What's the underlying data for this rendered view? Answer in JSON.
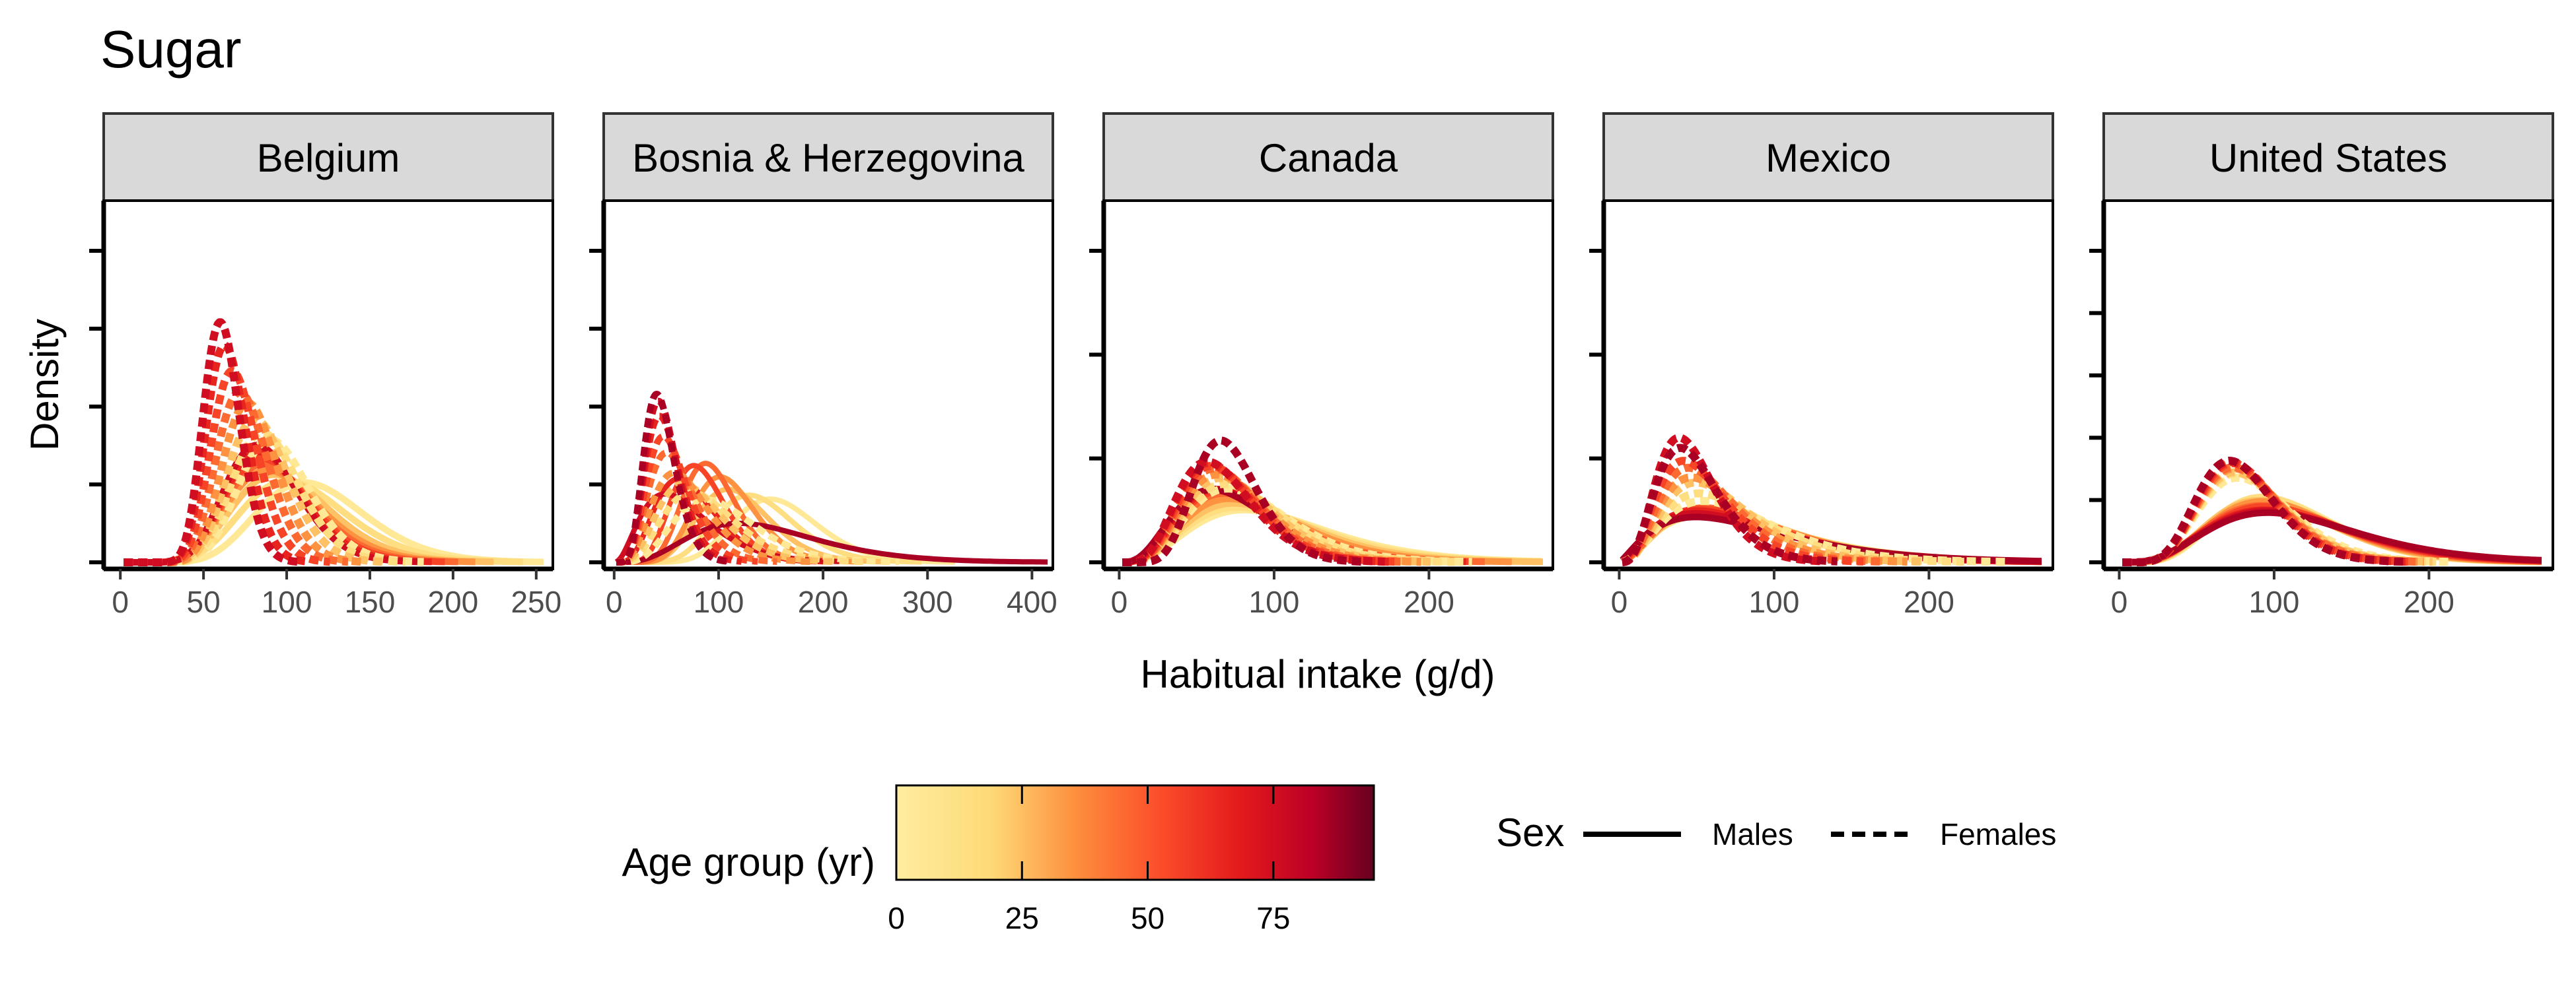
{
  "chart_data": {
    "type": "line",
    "title": "Sugar",
    "xlabel": "Habitual intake (g/d)",
    "ylabel": "Density",
    "legend_placement": "bottom",
    "color_legend": {
      "title": "Age group (yr)",
      "range": [
        0,
        95
      ],
      "ticks": [
        0,
        25,
        50,
        75
      ],
      "colors": [
        "#FFEDA0",
        "#FEB24C",
        "#FC4E2A",
        "#E31A1C",
        "#BD0026",
        "#800026"
      ]
    },
    "linetype_legend": {
      "title": "Sex",
      "entries": [
        {
          "label": "Males",
          "linetype": "solid"
        },
        {
          "label": "Females",
          "linetype": "dashed"
        }
      ]
    },
    "panels": [
      {
        "name": "Belgium",
        "xlim": [
          -10,
          260
        ],
        "xticks": [
          0,
          50,
          100,
          150,
          200,
          250
        ],
        "ymax": 1.08,
        "ytick_count": 4,
        "ages": [
          5,
          15,
          25,
          35,
          45,
          55,
          65,
          75
        ],
        "male": [
          [
            120,
            0.28
          ],
          [
            110,
            0.3
          ],
          [
            102,
            0.3
          ],
          [
            97,
            0.3
          ],
          [
            94,
            0.29
          ],
          [
            92,
            0.28
          ],
          [
            90,
            0.27
          ],
          [
            88,
            0.26
          ]
        ],
        "female": [
          [
            95,
            0.23
          ],
          [
            90,
            0.23
          ],
          [
            85,
            0.22
          ],
          [
            80,
            0.21
          ],
          [
            75,
            0.21
          ],
          [
            70,
            0.2
          ],
          [
            65,
            0.19
          ],
          [
            62,
            0.18
          ]
        ],
        "male_width": 10,
        "female_width": 12
      },
      {
        "name": "Bosnia & Herzegovina",
        "xlim": [
          -10,
          420
        ],
        "xticks": [
          0,
          100,
          200,
          300,
          400
        ],
        "ymax": 1.1,
        "ytick_count": 4,
        "ages": [
          5,
          15,
          25,
          35,
          45,
          55,
          65,
          75,
          85
        ],
        "male": [
          [
            160,
            0.26
          ],
          [
            140,
            0.28
          ],
          [
            120,
            0.3
          ],
          [
            110,
            0.28
          ],
          [
            95,
            0.28
          ],
          [
            85,
            0.32
          ],
          [
            75,
            0.42
          ],
          [
            70,
            0.55
          ],
          [
            150,
            0.45
          ]
        ],
        "female": [
          [
            105,
            0.4
          ],
          [
            90,
            0.42
          ],
          [
            80,
            0.42
          ],
          [
            70,
            0.42
          ],
          [
            60,
            0.4
          ],
          [
            55,
            0.38
          ],
          [
            50,
            0.36
          ],
          [
            48,
            0.34
          ],
          [
            46,
            0.34
          ]
        ],
        "male_width": 8,
        "female_width": 10
      },
      {
        "name": "Canada",
        "xlim": [
          -10,
          280
        ],
        "xticks": [
          0,
          100,
          200
        ],
        "ymax": 1.1,
        "ytick_count": 3,
        "ages": [
          5,
          15,
          25,
          35,
          45,
          55,
          65,
          75,
          85
        ],
        "male": [
          [
            105,
            0.48
          ],
          [
            100,
            0.48
          ],
          [
            95,
            0.47
          ],
          [
            90,
            0.46
          ],
          [
            85,
            0.45
          ],
          [
            82,
            0.45
          ],
          [
            80,
            0.45
          ],
          [
            78,
            0.46
          ],
          [
            77,
            0.47
          ]
        ],
        "female": [
          [
            85,
            0.42
          ],
          [
            82,
            0.41
          ],
          [
            78,
            0.4
          ],
          [
            75,
            0.4
          ],
          [
            72,
            0.39
          ],
          [
            70,
            0.39
          ],
          [
            68,
            0.39
          ],
          [
            67,
            0.39
          ],
          [
            72,
            0.3
          ]
        ],
        "male_width": 10,
        "female_width": 12
      },
      {
        "name": "Mexico",
        "xlim": [
          -10,
          280
        ],
        "xticks": [
          0,
          100,
          200
        ],
        "ymax": 1.1,
        "ytick_count": 3,
        "ages": [
          5,
          15,
          25,
          35,
          45,
          55,
          65,
          75,
          85
        ],
        "male": [
          [
            90,
            0.62
          ],
          [
            88,
            0.6
          ],
          [
            86,
            0.58
          ],
          [
            84,
            0.58
          ],
          [
            83,
            0.58
          ],
          [
            82,
            0.6
          ],
          [
            82,
            0.62
          ],
          [
            84,
            0.64
          ],
          [
            88,
            0.66
          ]
        ],
        "female": [
          [
            78,
            0.55
          ],
          [
            72,
            0.53
          ],
          [
            66,
            0.5
          ],
          [
            62,
            0.5
          ],
          [
            58,
            0.48
          ],
          [
            54,
            0.48
          ],
          [
            50,
            0.46
          ],
          [
            48,
            0.44
          ],
          [
            50,
            0.46
          ]
        ],
        "male_width": 10,
        "female_width": 12
      },
      {
        "name": "United States",
        "xlim": [
          -10,
          280
        ],
        "xticks": [
          0,
          100,
          200
        ],
        "ymax": 1.08,
        "ytick_count": 5,
        "ages": [
          5,
          15,
          25,
          35,
          45,
          55,
          65,
          75,
          85
        ],
        "male": [
          [
            110,
            0.38
          ],
          [
            108,
            0.38
          ],
          [
            108,
            0.4
          ],
          [
            110,
            0.4
          ],
          [
            112,
            0.42
          ],
          [
            114,
            0.42
          ],
          [
            116,
            0.44
          ],
          [
            118,
            0.44
          ],
          [
            120,
            0.45
          ]
        ],
        "female": [
          [
            88,
            0.36
          ],
          [
            86,
            0.35
          ],
          [
            85,
            0.35
          ],
          [
            84,
            0.34
          ],
          [
            83,
            0.34
          ],
          [
            82,
            0.33
          ],
          [
            81,
            0.33
          ],
          [
            80,
            0.33
          ],
          [
            80,
            0.33
          ]
        ],
        "male_width": 10,
        "female_width": 12
      }
    ]
  }
}
